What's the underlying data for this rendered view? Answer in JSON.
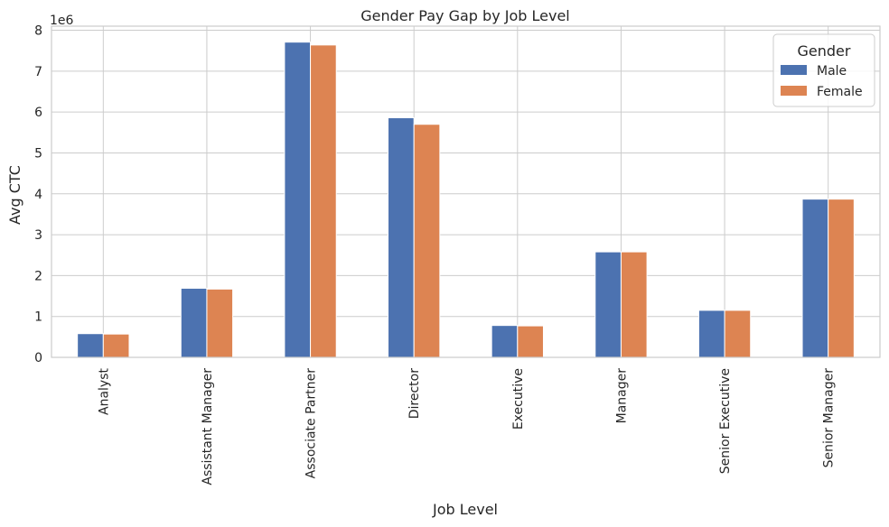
{
  "chart_data": {
    "type": "bar",
    "title": "Gender Pay Gap by Job Level",
    "xlabel": "Job Level",
    "ylabel": "Avg CTC",
    "y_offset_label": "1e6",
    "y_scale": 1000000,
    "ylim": [
      0,
      8100000
    ],
    "yticks": [
      0,
      1,
      2,
      3,
      4,
      5,
      6,
      7,
      8
    ],
    "grid": true,
    "legend": {
      "title": "Gender",
      "placement": "top-right"
    },
    "categories": [
      "Analyst",
      "Assistant Manager",
      "Associate Partner",
      "Director",
      "Executive",
      "Manager",
      "Senior Executive",
      "Senior Manager"
    ],
    "series": [
      {
        "name": "Male",
        "color": "#4c72b0",
        "values": [
          580000,
          1690000,
          7710000,
          5860000,
          780000,
          2580000,
          1150000,
          3870000
        ]
      },
      {
        "name": "Female",
        "color": "#dd8452",
        "values": [
          570000,
          1670000,
          7640000,
          5700000,
          770000,
          2580000,
          1150000,
          3870000
        ]
      }
    ]
  }
}
